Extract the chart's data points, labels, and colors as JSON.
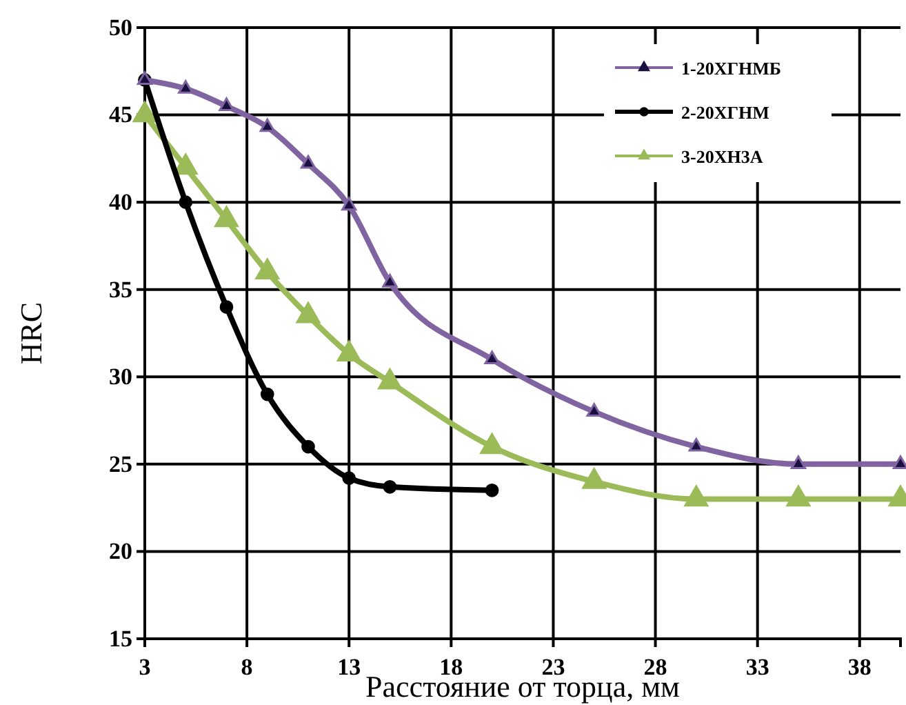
{
  "chart_data": {
    "type": "line",
    "xlabel": "Расстояние от торца, мм",
    "ylabel": "HRC",
    "xlim": [
      3,
      40
    ],
    "xticks": [
      3,
      8,
      13,
      18,
      23,
      28,
      33,
      38
    ],
    "ylim": [
      15,
      50
    ],
    "yticks": [
      15,
      20,
      25,
      30,
      35,
      40,
      45,
      50
    ],
    "grid": true,
    "legend": "top right",
    "line_style": "solid",
    "series": [
      {
        "name": "1-20ХГНМБ",
        "color": "#8064a2",
        "marker": "triangle",
        "x": [
          3,
          5,
          7,
          9,
          11,
          13,
          15,
          20,
          25,
          30,
          35,
          40
        ],
        "values": [
          47,
          46.5,
          45.5,
          44.3,
          42.2,
          39.8,
          35.4,
          31,
          28,
          26,
          25,
          25
        ]
      },
      {
        "name": "2-20ХГНМ",
        "color": "#000000",
        "marker": "circle",
        "x": [
          3,
          5,
          7,
          9,
          11,
          13,
          15,
          20
        ],
        "values": [
          47,
          40,
          34,
          29,
          26,
          24.2,
          23.7,
          23.5
        ]
      },
      {
        "name": "3-20ХН3А",
        "color": "#9bbb59",
        "marker": "triangle",
        "x": [
          3,
          5,
          7,
          9,
          11,
          13,
          15,
          20,
          25,
          30,
          35,
          40
        ],
        "values": [
          45,
          42,
          39,
          36,
          33.5,
          31.3,
          29.7,
          26,
          24,
          23,
          23,
          23
        ]
      }
    ]
  }
}
